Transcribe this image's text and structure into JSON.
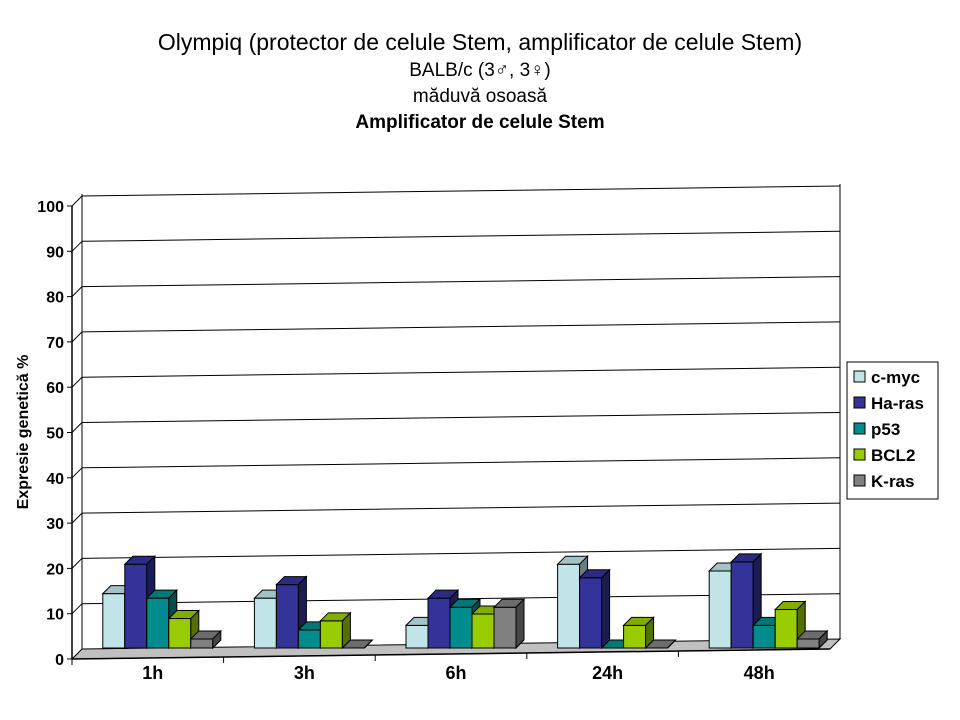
{
  "chart_data": {
    "type": "bar",
    "title": "Olympiq (protector de celule Stem, amplificator de celule Stem)",
    "subtitle_lines": [
      "BALB/c (3♂, 3♀)",
      "măduvă osoasă"
    ],
    "subtitle_bold": "Amplificator de celule Stem",
    "ylabel": "Expresie genetică %",
    "xlabel": "",
    "ylim": [
      0,
      100
    ],
    "yticks": [
      "0",
      "10",
      "20",
      "30",
      "40",
      "50",
      "60",
      "70",
      "80",
      "90",
      "100"
    ],
    "grid": true,
    "legend_position": "right",
    "categories": [
      "1h",
      "3h",
      "6h",
      "24h",
      "48h"
    ],
    "series": [
      {
        "name": "c-myc",
        "color": "#C0E4E8",
        "values": [
          12,
          11,
          5,
          18.5,
          17
        ]
      },
      {
        "name": "Ha-ras",
        "color": "#333399",
        "values": [
          18.5,
          14,
          11,
          15.5,
          19
        ]
      },
      {
        "name": "p53",
        "color": "#008C8C",
        "values": [
          11,
          4,
          9,
          0,
          5
        ]
      },
      {
        "name": "BCL2",
        "color": "#99CC00",
        "values": [
          6.5,
          6,
          7.5,
          5,
          8.5
        ]
      },
      {
        "name": "K-ras",
        "color": "#808080",
        "values": [
          2,
          0,
          9,
          0,
          2
        ]
      }
    ]
  }
}
